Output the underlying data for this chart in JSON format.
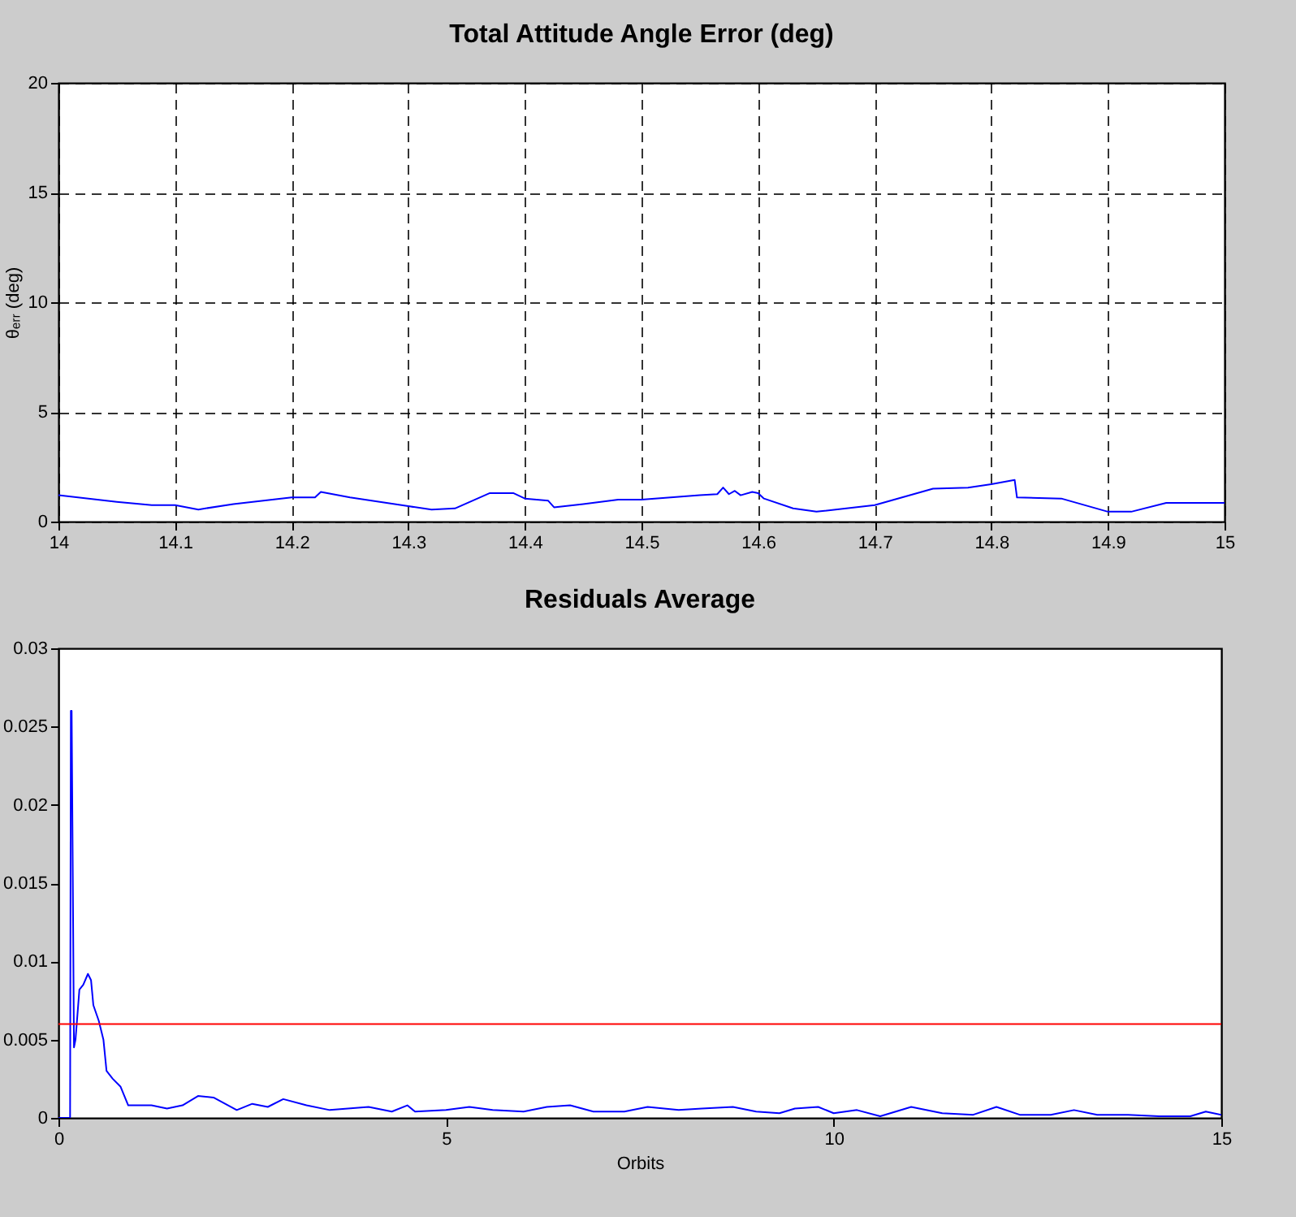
{
  "chart_data": [
    {
      "type": "line",
      "title": "Total Attitude Angle Error (deg)",
      "ylabel": "θₑᵣᵣ (deg)",
      "xlim": [
        14,
        15
      ],
      "xticks": [
        14,
        14.1,
        14.2,
        14.3,
        14.4,
        14.5,
        14.6,
        14.7,
        14.8,
        14.9,
        15
      ],
      "ylim": [
        0,
        20
      ],
      "yticks": [
        0,
        5,
        10,
        15,
        20
      ],
      "grid": true,
      "series": [
        {
          "color": "#0000ff",
          "x": [
            14.0,
            14.05,
            14.08,
            14.1,
            14.12,
            14.15,
            14.2,
            14.22,
            14.225,
            14.25,
            14.3,
            14.32,
            14.34,
            14.37,
            14.39,
            14.4,
            14.42,
            14.425,
            14.45,
            14.48,
            14.5,
            14.55,
            14.565,
            14.57,
            14.575,
            14.58,
            14.585,
            14.595,
            14.6,
            14.605,
            14.63,
            14.65,
            14.7,
            14.75,
            14.78,
            14.8,
            14.82,
            14.822,
            14.86,
            14.9,
            14.92,
            14.95,
            15.0
          ],
          "values": [
            1.2,
            0.9,
            0.75,
            0.75,
            0.55,
            0.8,
            1.1,
            1.1,
            1.35,
            1.1,
            0.7,
            0.55,
            0.6,
            1.3,
            1.3,
            1.05,
            0.95,
            0.65,
            0.8,
            1.0,
            1.0,
            1.2,
            1.25,
            1.55,
            1.25,
            1.4,
            1.2,
            1.35,
            1.3,
            1.05,
            0.6,
            0.45,
            0.75,
            1.5,
            1.55,
            1.7,
            1.9,
            1.1,
            1.05,
            0.45,
            0.45,
            0.85,
            0.85
          ]
        }
      ]
    },
    {
      "type": "line",
      "title": "Residuals Average",
      "xlabel": "Orbits",
      "xlim": [
        0,
        15
      ],
      "xticks": [
        0,
        5,
        10,
        15
      ],
      "ylim": [
        0,
        0.03
      ],
      "yticks": [
        0,
        0.005,
        0.01,
        0.015,
        0.02,
        0.025,
        0.03
      ],
      "series": [
        {
          "color": "#0000ff",
          "x": [
            0,
            0.15,
            0.16,
            0.17,
            0.2,
            0.22,
            0.27,
            0.32,
            0.38,
            0.42,
            0.45,
            0.52,
            0.58,
            0.62,
            0.7,
            0.8,
            0.9,
            1.2,
            1.4,
            1.6,
            1.8,
            2.0,
            2.3,
            2.5,
            2.7,
            2.9,
            3.2,
            3.5,
            4.0,
            4.3,
            4.5,
            4.6,
            5.0,
            5.3,
            5.6,
            6.0,
            6.3,
            6.6,
            6.9,
            7.3,
            7.6,
            8.0,
            8.3,
            8.7,
            9.0,
            9.3,
            9.5,
            9.8,
            10.0,
            10.3,
            10.6,
            11.0,
            11.4,
            11.8,
            12.1,
            12.4,
            12.8,
            13.1,
            13.4,
            13.8,
            14.2,
            14.6,
            14.8,
            15.0
          ],
          "values": [
            0,
            0,
            0.026,
            0.026,
            0.0045,
            0.005,
            0.0082,
            0.0085,
            0.0092,
            0.0088,
            0.0072,
            0.0062,
            0.005,
            0.003,
            0.0025,
            0.002,
            0.0008,
            0.0008,
            0.0006,
            0.0008,
            0.0014,
            0.0013,
            0.0005,
            0.0009,
            0.0007,
            0.0012,
            0.0008,
            0.0005,
            0.0007,
            0.0004,
            0.0008,
            0.0004,
            0.0005,
            0.0007,
            0.0005,
            0.0004,
            0.0007,
            0.0008,
            0.0004,
            0.0004,
            0.0007,
            0.0005,
            0.0006,
            0.0007,
            0.0004,
            0.0003,
            0.0006,
            0.0007,
            0.0003,
            0.0005,
            0.0001,
            0.0007,
            0.0003,
            0.0002,
            0.0007,
            0.0002,
            0.0002,
            0.0005,
            0.0002,
            0.0002,
            0.0001,
            0.0001,
            0.0004,
            0.0002
          ]
        }
      ],
      "ref_lines": [
        {
          "axis": "y",
          "value": 0.006,
          "color": "#ff0000"
        }
      ]
    }
  ]
}
